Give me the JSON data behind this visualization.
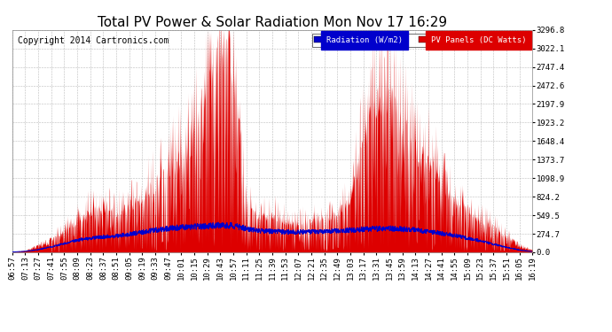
{
  "title": "Total PV Power & Solar Radiation Mon Nov 17 16:29",
  "copyright": "Copyright 2014 Cartronics.com",
  "legend_radiation": "Radiation (W/m2)",
  "legend_pv": "PV Panels (DC Watts)",
  "background_color": "#ffffff",
  "plot_bg_color": "#ffffff",
  "grid_color": "#bbbbbb",
  "pv_color": "#dd0000",
  "radiation_color": "#0000cc",
  "ymax": 3296.8,
  "ymin": 0.0,
  "yticks": [
    0.0,
    274.7,
    549.5,
    824.2,
    1098.9,
    1373.7,
    1648.4,
    1923.2,
    2197.9,
    2472.6,
    2747.4,
    3022.1,
    3296.8
  ],
  "xtick_labels": [
    "06:57",
    "07:13",
    "07:27",
    "07:41",
    "07:55",
    "08:09",
    "08:23",
    "08:37",
    "08:51",
    "09:05",
    "09:19",
    "09:33",
    "09:47",
    "10:01",
    "10:15",
    "10:29",
    "10:43",
    "10:57",
    "11:11",
    "11:25",
    "11:39",
    "11:53",
    "12:07",
    "12:21",
    "12:35",
    "12:49",
    "13:03",
    "13:17",
    "13:31",
    "13:45",
    "13:59",
    "14:13",
    "14:27",
    "14:41",
    "14:55",
    "15:09",
    "15:23",
    "15:37",
    "15:51",
    "16:05",
    "16:19"
  ],
  "title_fontsize": 11,
  "copyright_fontsize": 7,
  "tick_fontsize": 6.5
}
